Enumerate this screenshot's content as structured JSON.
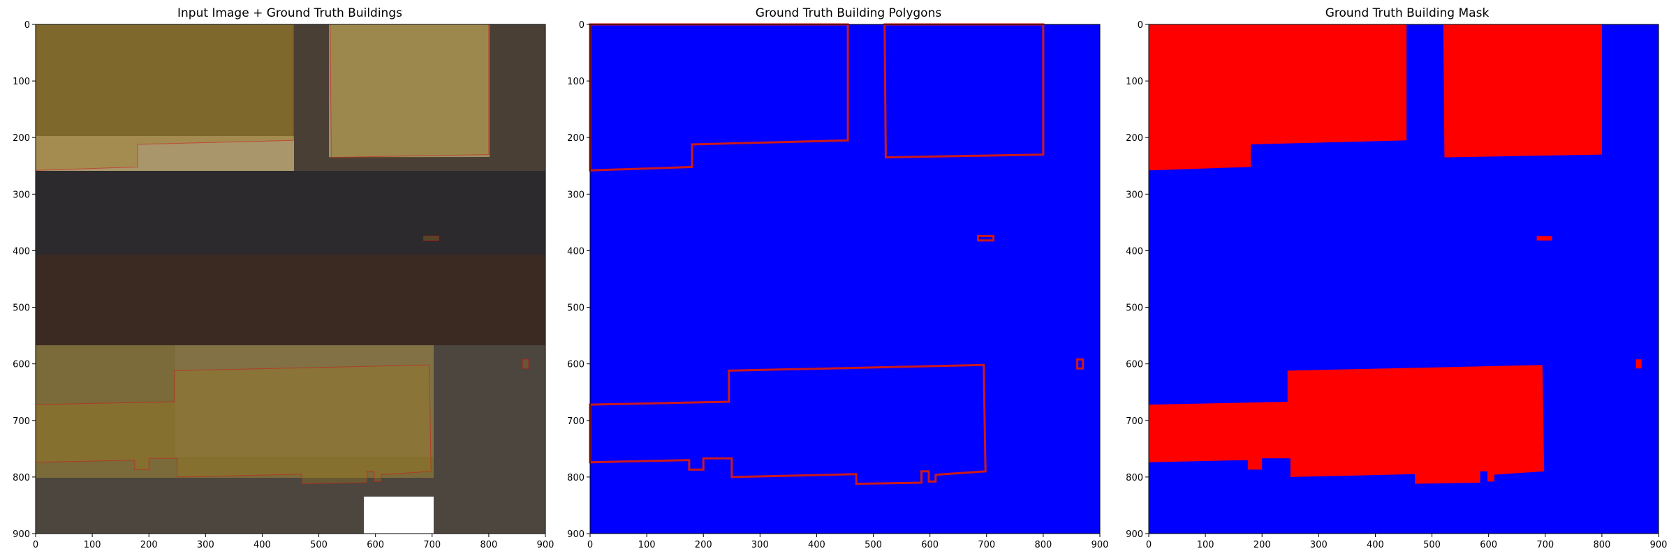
{
  "panels": [
    {
      "title": "Input Image + Ground Truth Buildings"
    },
    {
      "title": "Ground Truth Building Polygons"
    },
    {
      "title": "Ground Truth Building Mask"
    }
  ],
  "axes": {
    "xlim": [
      0,
      900
    ],
    "ylim": [
      900,
      0
    ],
    "x_ticks": [
      "0",
      "100",
      "200",
      "300",
      "400",
      "500",
      "600",
      "700",
      "800",
      "900"
    ],
    "y_ticks": [
      "0",
      "100",
      "200",
      "300",
      "400",
      "500",
      "600",
      "700",
      "800",
      "900"
    ]
  },
  "colors": {
    "background_blue": "#0000ff",
    "building_red": "#ff0000",
    "outline_red": "#cc1a1a"
  },
  "buildings": [
    {
      "name": "building-top-left",
      "polygon": [
        [
          0,
          0
        ],
        [
          455,
          0
        ],
        [
          455,
          205
        ],
        [
          180,
          212
        ],
        [
          180,
          252
        ],
        [
          0,
          258
        ]
      ]
    },
    {
      "name": "building-top-right",
      "polygon": [
        [
          520,
          0
        ],
        [
          800,
          0
        ],
        [
          800,
          230
        ],
        [
          522,
          235
        ]
      ]
    },
    {
      "name": "building-small-mid",
      "polygon": [
        [
          685,
          374
        ],
        [
          712,
          374
        ],
        [
          712,
          382
        ],
        [
          685,
          382
        ]
      ]
    },
    {
      "name": "building-small-right",
      "polygon": [
        [
          860,
          592
        ],
        [
          870,
          592
        ],
        [
          870,
          608
        ],
        [
          860,
          608
        ]
      ]
    },
    {
      "name": "building-bottom",
      "polygon": [
        [
          0,
          672
        ],
        [
          245,
          667
        ],
        [
          245,
          612
        ],
        [
          695,
          602
        ],
        [
          698,
          790
        ],
        [
          610,
          796
        ],
        [
          610,
          808
        ],
        [
          598,
          808
        ],
        [
          598,
          790
        ],
        [
          585,
          790
        ],
        [
          585,
          810
        ],
        [
          470,
          812
        ],
        [
          470,
          795
        ],
        [
          250,
          800
        ],
        [
          250,
          767
        ],
        [
          200,
          767
        ],
        [
          200,
          787
        ],
        [
          175,
          787
        ],
        [
          175,
          770
        ],
        [
          0,
          774
        ]
      ]
    }
  ]
}
